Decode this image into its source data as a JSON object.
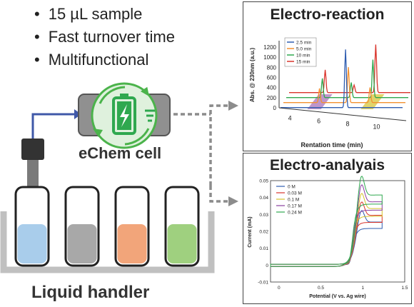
{
  "bullets": [
    "15 µL sample",
    "Fast turnover time",
    "Multifunctional"
  ],
  "cell_label": "eChem cell",
  "handler_label": "Liquid handler",
  "colors": {
    "blue": "#2F5DB0",
    "orange": "#F39131",
    "green": "#2FA84F",
    "red": "#D9342B",
    "yellow": "#D4C22B",
    "purple": "#8A3FA0",
    "cell_green": "#3EB54A",
    "vial_blue": "#A9CDEB",
    "vial_gray": "#A8A8A8",
    "vial_orange": "#F2A57A",
    "vial_green": "#9FD07F"
  },
  "top_panel": {
    "title": "Electro-reaction",
    "chart_data": {
      "type": "line",
      "title": "Electro-reaction",
      "xlabel": "Rentation time (min)",
      "ylabel": "Abs. @ 230nm (a.u.)",
      "x_ticks": [
        "4",
        "6",
        "8",
        "10"
      ],
      "y_ticks": [
        "0",
        "200",
        "400",
        "600",
        "800",
        "1000",
        "1200"
      ],
      "ylim": [
        0,
        1300
      ],
      "legend_position": "top-left",
      "series": [
        {
          "name": "2.5 min",
          "peaks": [
            {
              "x": 8.0,
              "y": 1150
            }
          ]
        },
        {
          "name": "5.0 min",
          "peaks": [
            {
              "x": 6.0,
              "y": 280
            },
            {
              "x": 8.0,
              "y": 700
            },
            {
              "x": 9.5,
              "y": 300
            }
          ]
        },
        {
          "name": "10 min",
          "peaks": [
            {
              "x": 6.0,
              "y": 380
            },
            {
              "x": 8.0,
              "y": 300
            },
            {
              "x": 9.5,
              "y": 750
            }
          ]
        },
        {
          "name": "15 min",
          "peaks": [
            {
              "x": 6.0,
              "y": 450
            },
            {
              "x": 8.0,
              "y": 150
            },
            {
              "x": 9.5,
              "y": 950
            }
          ]
        }
      ]
    }
  },
  "bottom_panel": {
    "title": "Electro-analyais",
    "chart_data": {
      "type": "line",
      "title": "Electro-analyais",
      "xlabel": "Potential (V vs. Ag wire)",
      "ylabel": "Current (mA)",
      "x_ticks": [
        "0",
        "0.5",
        "1",
        "1.5"
      ],
      "y_ticks": [
        "-0.01",
        "0",
        "0.01",
        "0.02",
        "0.03",
        "0.04",
        "0.05"
      ],
      "xlim": [
        -0.1,
        1.5
      ],
      "ylim": [
        -0.01,
        0.05
      ],
      "legend_position": "top-left",
      "series": [
        {
          "name": "0 M",
          "limit": 0.025
        },
        {
          "name": "0.03 M",
          "limit": 0.029
        },
        {
          "name": "0.1 M",
          "limit": 0.033
        },
        {
          "name": "0.17 M",
          "limit": 0.037
        },
        {
          "name": "0.24 M",
          "limit": 0.041
        }
      ]
    }
  }
}
